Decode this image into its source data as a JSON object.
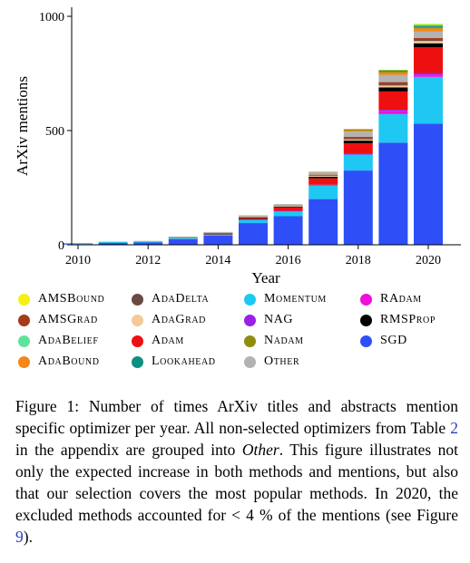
{
  "chart_data": {
    "type": "bar",
    "stacked": true,
    "xlabel": "Year",
    "ylabel": "ArXiv mentions",
    "ylim": [
      0,
      1000
    ],
    "yticks": [
      "0",
      "500",
      "1000"
    ],
    "xticks": [
      "2010",
      "2012",
      "2014",
      "2016",
      "2018",
      "2020"
    ],
    "categories": [
      "2010",
      "2011",
      "2012",
      "2013",
      "2014",
      "2015",
      "2016",
      "2017",
      "2018",
      "2019",
      "2020"
    ],
    "series": [
      {
        "name": "SGD",
        "color": "#2e4ff7",
        "values": [
          3,
          8,
          10,
          25,
          40,
          95,
          125,
          200,
          325,
          447,
          530
        ]
      },
      {
        "name": "Momentum",
        "color": "#1ec8f2",
        "values": [
          3,
          4,
          5,
          6,
          6,
          15,
          22,
          60,
          70,
          125,
          205
        ]
      },
      {
        "name": "RAdam",
        "color": "#ee10d8",
        "values": [
          0,
          0,
          0,
          0,
          0,
          0,
          0,
          0,
          0,
          14,
          10
        ]
      },
      {
        "name": "NAG",
        "color": "#9b1fe8",
        "values": [
          0,
          0,
          0,
          0,
          0,
          1,
          2,
          3,
          4,
          5,
          7
        ]
      },
      {
        "name": "Adam",
        "color": "#ee1010",
        "values": [
          0,
          0,
          0,
          0,
          1,
          5,
          15,
          28,
          45,
          80,
          112
        ]
      },
      {
        "name": "RMSProp",
        "color": "#000000",
        "values": [
          0,
          0,
          0,
          0,
          2,
          3,
          3,
          7,
          12,
          18,
          18
        ]
      },
      {
        "name": "AdaGrad",
        "color": "#f5c99a",
        "values": [
          0,
          0,
          0,
          1,
          2,
          3,
          3,
          4,
          5,
          8,
          10
        ]
      },
      {
        "name": "AdaDelta",
        "color": "#6b4a44",
        "values": [
          0,
          0,
          0,
          1,
          1,
          2,
          2,
          3,
          4,
          5,
          5
        ]
      },
      {
        "name": "AMSGrad",
        "color": "#a63b17",
        "values": [
          0,
          0,
          0,
          0,
          0,
          0,
          0,
          2,
          8,
          10,
          8
        ]
      },
      {
        "name": "Other",
        "color": "#b3b3b3",
        "values": [
          2,
          2,
          2,
          3,
          4,
          5,
          6,
          10,
          22,
          32,
          28
        ]
      },
      {
        "name": "AdaBound",
        "color": "#f58718",
        "values": [
          0,
          0,
          0,
          0,
          0,
          0,
          0,
          0,
          5,
          10,
          14
        ]
      },
      {
        "name": "Nadam",
        "color": "#8f8d10",
        "values": [
          0,
          0,
          0,
          0,
          0,
          0,
          0,
          2,
          6,
          6,
          6
        ]
      },
      {
        "name": "Lookahead",
        "color": "#0e8f82",
        "values": [
          0,
          0,
          0,
          0,
          0,
          0,
          0,
          0,
          0,
          4,
          6
        ]
      },
      {
        "name": "AdaBelief",
        "color": "#5fe39a",
        "values": [
          0,
          0,
          0,
          0,
          0,
          0,
          0,
          0,
          0,
          0,
          5
        ]
      },
      {
        "name": "AMSBound",
        "color": "#f5f00f",
        "values": [
          0,
          0,
          0,
          0,
          0,
          0,
          0,
          0,
          0,
          2,
          4
        ]
      }
    ]
  },
  "legend": [
    {
      "name": "AMSBound",
      "color": "#f5f00f"
    },
    {
      "name": "AdaDelta",
      "color": "#6b4a44"
    },
    {
      "name": "Momentum",
      "color": "#1ec8f2"
    },
    {
      "name": "RAdam",
      "color": "#ee10d8"
    },
    {
      "name": "AMSGrad",
      "color": "#a63b17"
    },
    {
      "name": "AdaGrad",
      "color": "#f5c99a"
    },
    {
      "name": "NAG",
      "color": "#9b1fe8"
    },
    {
      "name": "RMSProp",
      "color": "#000000"
    },
    {
      "name": "AdaBelief",
      "color": "#5fe39a"
    },
    {
      "name": "Adam",
      "color": "#ee1010"
    },
    {
      "name": "Nadam",
      "color": "#8f8d10"
    },
    {
      "name": "SGD",
      "color": "#2e4ff7"
    },
    {
      "name": "AdaBound",
      "color": "#f58718"
    },
    {
      "name": "Lookahead",
      "color": "#0e8f82"
    },
    {
      "name": "Other",
      "color": "#b3b3b3"
    }
  ],
  "caption": {
    "label": "Figure 1:",
    "part1": " Number of times ArXiv titles and abstracts mention specific optimizer per year. All non-selected optimizers from Table ",
    "table_ref": "2",
    "part2": " in the appendix are grouped into ",
    "other_term": "Other",
    "part3": ". This figure illustrates not only the expected increase in both methods and mentions, but also that our selection covers the most popular methods. In 2020, the excluded methods accounted for < 4 % of the mentions (see Figure ",
    "figure_ref": "9",
    "part4": ")."
  }
}
